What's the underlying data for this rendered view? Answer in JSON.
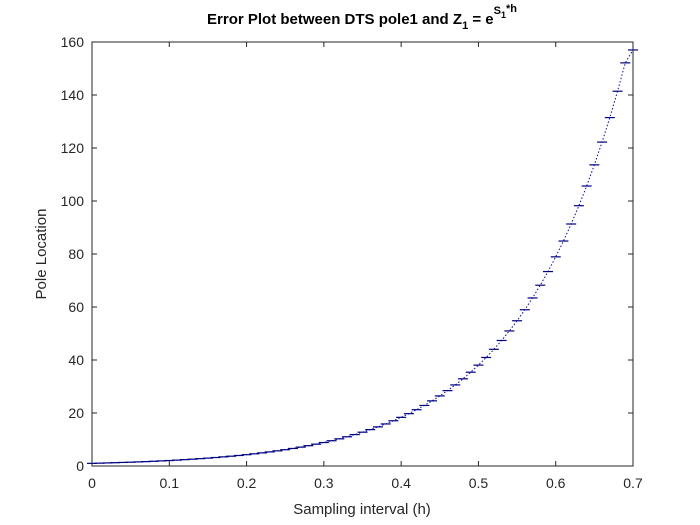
{
  "chart_data": {
    "type": "line",
    "title": {
      "main": "Error Plot between DTS pole1 and Z",
      "sub1": "1",
      "eq": " = e",
      "sup": "S",
      "supsub": "1",
      "suptail": "*h"
    },
    "xlabel": "Sampling interval (h)",
    "ylabel": "Pole Location",
    "xlim": [
      0,
      0.7
    ],
    "ylim": [
      0,
      160
    ],
    "xticks": [
      0,
      0.1,
      0.2,
      0.3,
      0.4,
      0.5,
      0.6,
      0.7
    ],
    "xtick_labels": [
      "0",
      "0.1",
      "0.2",
      "0.3",
      "0.4",
      "0.5",
      "0.6",
      "0.7"
    ],
    "yticks": [
      0,
      20,
      40,
      60,
      80,
      100,
      120,
      140,
      160
    ],
    "ytick_labels": [
      "0",
      "20",
      "40",
      "60",
      "80",
      "100",
      "120",
      "140",
      "160"
    ],
    "grid": false,
    "series": [
      {
        "line_color": "#0000ff",
        "marker_color": "#000080",
        "x": [
          0.0,
          0.01,
          0.02,
          0.03,
          0.04,
          0.05,
          0.06,
          0.07,
          0.08,
          0.09,
          0.1,
          0.11,
          0.12,
          0.13,
          0.14,
          0.15,
          0.16,
          0.17,
          0.18,
          0.19,
          0.2,
          0.21,
          0.22,
          0.23,
          0.24,
          0.25,
          0.26,
          0.27,
          0.28,
          0.29,
          0.3,
          0.31,
          0.32,
          0.33,
          0.34,
          0.35,
          0.36,
          0.37,
          0.38,
          0.39,
          0.4,
          0.41,
          0.42,
          0.43,
          0.44,
          0.45,
          0.46,
          0.47,
          0.48,
          0.49,
          0.5,
          0.51,
          0.52,
          0.53,
          0.54,
          0.55,
          0.56,
          0.57,
          0.58,
          0.59,
          0.6,
          0.61,
          0.62,
          0.63,
          0.64,
          0.65,
          0.66,
          0.67,
          0.68,
          0.69,
          0.7
        ],
        "y": [
          1.0,
          1.07,
          1.16,
          1.25,
          1.34,
          1.43,
          1.55,
          1.66,
          1.79,
          1.93,
          2.06,
          2.23,
          2.4,
          2.58,
          2.77,
          2.97,
          3.2,
          3.44,
          3.7,
          3.97,
          4.27,
          4.6,
          4.95,
          5.32,
          5.72,
          6.15,
          6.62,
          7.12,
          7.66,
          8.24,
          8.86,
          9.53,
          10.25,
          11.03,
          11.86,
          12.76,
          13.72,
          14.76,
          15.87,
          17.07,
          18.36,
          19.75,
          21.24,
          22.85,
          24.58,
          26.44,
          28.44,
          30.59,
          32.9,
          35.39,
          38.07,
          40.95,
          44.04,
          47.37,
          50.96,
          54.81,
          58.96,
          63.42,
          68.22,
          73.37,
          78.93,
          84.89,
          91.32,
          98.22,
          105.65,
          113.64,
          122.24,
          131.48,
          141.43,
          152.13,
          157.0
        ]
      }
    ]
  }
}
